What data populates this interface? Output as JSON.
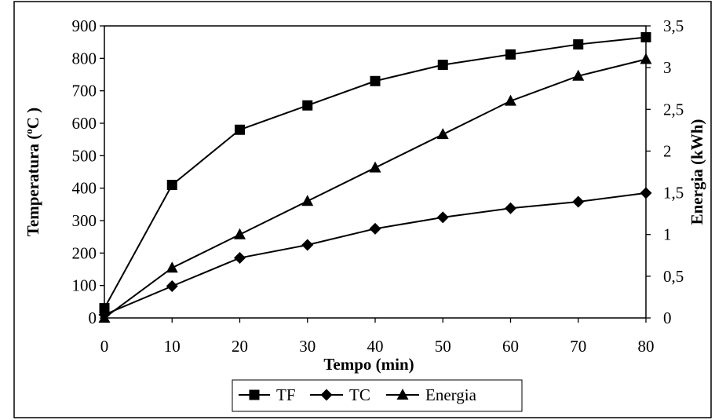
{
  "chart_data": {
    "type": "line",
    "xlabel": "Tempo (min)",
    "ylabel": "Temperatura (°C)",
    "ylabel_parts": {
      "main": "Temperatura (",
      "degree": "o",
      "unit": "C )"
    },
    "y2label": "Energia (kWh)",
    "xlim": [
      0,
      80
    ],
    "ylim": [
      0,
      900
    ],
    "y2lim": [
      0,
      3.5
    ],
    "x_ticks": [
      "0",
      "10",
      "20",
      "30",
      "40",
      "50",
      "60",
      "70",
      "80"
    ],
    "y_ticks": [
      "0",
      "100",
      "200",
      "300",
      "400",
      "500",
      "600",
      "700",
      "800",
      "900"
    ],
    "y2_ticks": [
      "0",
      "0,5",
      "1",
      "1,5",
      "2",
      "2,5",
      "3",
      "3,5"
    ],
    "grid": false,
    "legend_position": "bottom-center",
    "series": [
      {
        "name": "TF",
        "axis": "left",
        "marker": "square",
        "x": [
          0,
          10,
          20,
          30,
          40,
          50,
          60,
          70,
          80
        ],
        "values": [
          30,
          410,
          580,
          655,
          730,
          780,
          812,
          843,
          865
        ]
      },
      {
        "name": "TC",
        "axis": "left",
        "marker": "diamond",
        "x": [
          0,
          10,
          20,
          30,
          40,
          50,
          60,
          70,
          80
        ],
        "values": [
          10,
          98,
          185,
          225,
          275,
          310,
          338,
          358,
          385
        ]
      },
      {
        "name": "Energia",
        "axis": "right",
        "marker": "triangle",
        "x": [
          0,
          10,
          20,
          30,
          40,
          50,
          60,
          70,
          80
        ],
        "values": [
          0,
          0.6,
          1.0,
          1.4,
          1.8,
          2.2,
          2.6,
          2.9,
          3.1
        ]
      }
    ]
  }
}
